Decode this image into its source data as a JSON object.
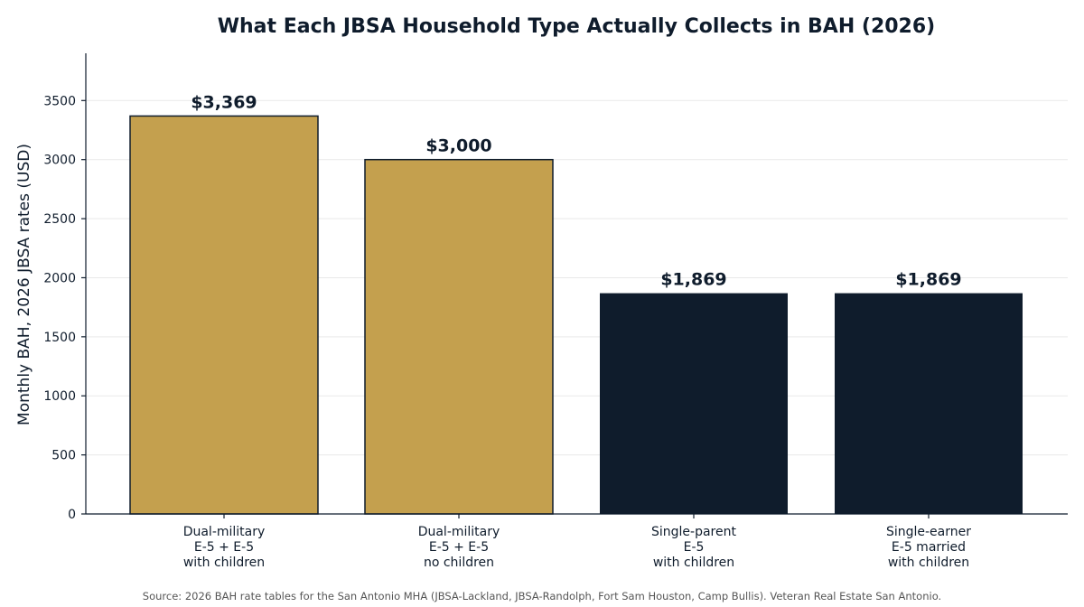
{
  "chart_data": {
    "type": "bar",
    "title": "What Each JBSA Household Type Actually Collects in BAH (2026)",
    "ylabel": "Monthly BAH, 2026 JBSA rates (USD)",
    "xlabel": "",
    "ylim": [
      0,
      3900
    ],
    "yticks": [
      0,
      500,
      1000,
      1500,
      2000,
      2500,
      3000,
      3500
    ],
    "grid": "horizontal",
    "categories": [
      [
        "Dual-military",
        "E-5 + E-5",
        "with children"
      ],
      [
        "Dual-military",
        "E-5 + E-5",
        "no children"
      ],
      [
        "Single-parent",
        "E-5",
        "with children"
      ],
      [
        "Single-earner",
        "E-5 married",
        "with children"
      ]
    ],
    "values": [
      3369,
      3000,
      1869,
      1869
    ],
    "data_labels": [
      "$3,369",
      "$3,000",
      "$1,869",
      "$1,869"
    ],
    "bar_colors": [
      "#c4a04e",
      "#c4a04e",
      "#0f1c2c",
      "#0f1c2c"
    ],
    "bar_edge": [
      "#0f1c2c",
      "#0f1c2c",
      "none",
      "none"
    ],
    "source": "Source: 2026 BAH rate tables for the San Antonio MHA (JBSA-Lackland, JBSA-Randolph, Fort Sam Houston, Camp Bullis). Veteran Real Estate San Antonio."
  }
}
